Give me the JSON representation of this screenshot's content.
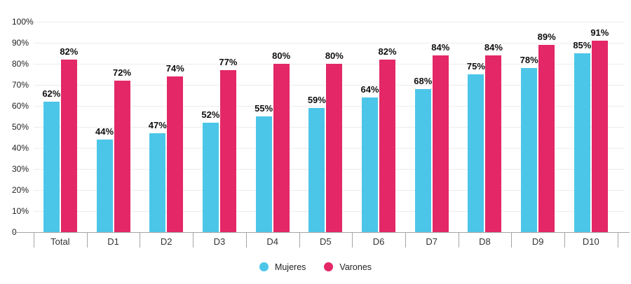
{
  "chart_data": {
    "type": "bar",
    "title": "",
    "xlabel": "",
    "ylabel": "",
    "categories": [
      "Total",
      "D1",
      "D2",
      "D3",
      "D4",
      "D5",
      "D6",
      "D7",
      "D8",
      "D9",
      "D10"
    ],
    "series": [
      {
        "name": "Mujeres",
        "color": "#4CC6E8",
        "values": [
          62,
          44,
          47,
          52,
          55,
          59,
          64,
          68,
          75,
          78,
          85
        ]
      },
      {
        "name": "Varones",
        "color": "#E32767",
        "values": [
          82,
          72,
          74,
          77,
          80,
          80,
          82,
          84,
          84,
          89,
          91
        ]
      }
    ],
    "value_suffix": "%",
    "data_labels_shown": true,
    "y_ticks": [
      {
        "value": 100,
        "label": "100%"
      },
      {
        "value": 90,
        "label": "90%"
      },
      {
        "value": 80,
        "label": "80%"
      },
      {
        "value": 70,
        "label": "70%"
      },
      {
        "value": 60,
        "label": "60%"
      },
      {
        "value": 50,
        "label": "50%"
      },
      {
        "value": 40,
        "label": "40%"
      },
      {
        "value": 30,
        "label": "30%"
      },
      {
        "value": 20,
        "label": "20%"
      },
      {
        "value": 10,
        "label": "10%"
      },
      {
        "value": 0,
        "label": "0"
      }
    ],
    "ylim": [
      0,
      100
    ],
    "grid": true,
    "legend_position": "bottom"
  },
  "colors": {
    "background": "#ffffff",
    "gridline": "#ececec",
    "axis_line": "#a5a5a5",
    "value_label": "#0f0f0f",
    "tick_label": "#1f1f1f"
  }
}
